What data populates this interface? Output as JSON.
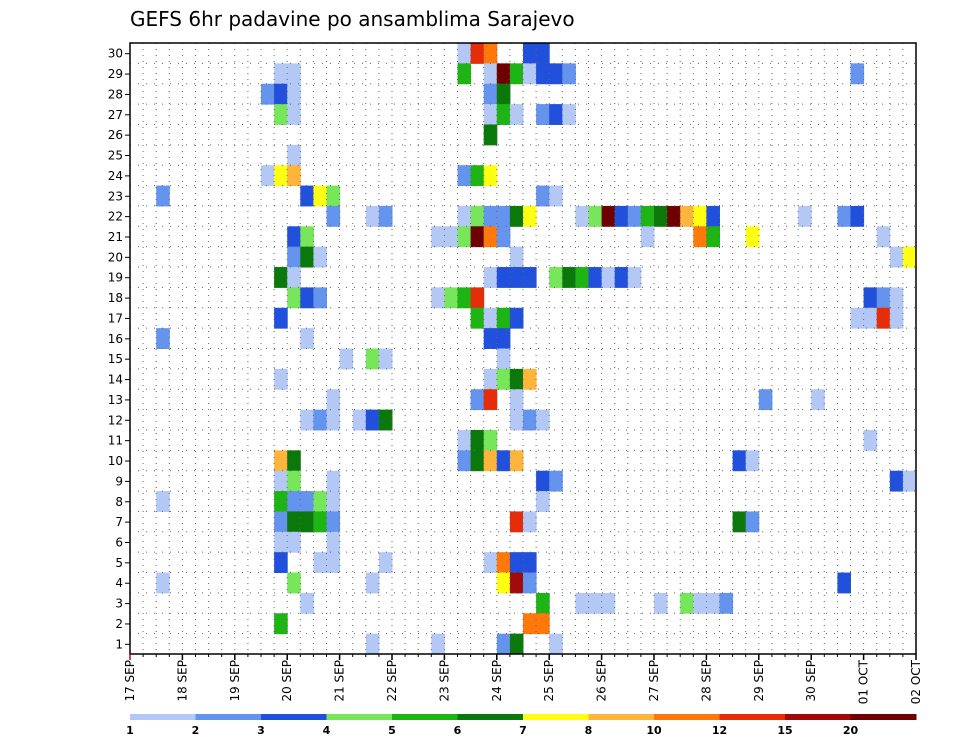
{
  "chart_data": {
    "type": "heatmap",
    "title": "GEFS 6hr padavine po ansamblima Sarajevo",
    "y_categories": [
      1,
      2,
      3,
      4,
      5,
      6,
      7,
      8,
      9,
      10,
      11,
      12,
      13,
      14,
      15,
      16,
      17,
      18,
      19,
      20,
      21,
      22,
      23,
      24,
      25,
      26,
      27,
      28,
      29,
      30
    ],
    "x_ticks": [
      "17 SEP",
      "18 SEP",
      "19 SEP",
      "20 SEP",
      "21 SEP",
      "22 SEP",
      "23 SEP",
      "24 SEP",
      "25 SEP",
      "26 SEP",
      "27 SEP",
      "28 SEP",
      "29 SEP",
      "30 SEP",
      "01 OCT",
      "02 OCT"
    ],
    "x_range_days": [
      0,
      15
    ],
    "grid": true,
    "legend_placement": "bottom",
    "legend_levels": [
      1,
      2,
      3,
      4,
      5,
      6,
      7,
      8,
      10,
      12,
      15,
      20
    ],
    "legend_colors": [
      "#b4c8f5",
      "#6494ee",
      "#2050dc",
      "#78e65a",
      "#1eb414",
      "#0a780a",
      "#ffff14",
      "#ffb43c",
      "#ff780a",
      "#e62d0a",
      "#a00a0a",
      "#6e0000"
    ],
    "cells": [
      {
        "m": 30,
        "t": "23 SEP 06",
        "c": 0
      },
      {
        "m": 30,
        "t": "23 SEP 12",
        "c": 9
      },
      {
        "m": 30,
        "t": "23 SEP 18",
        "c": 8
      },
      {
        "m": 30,
        "t": "24 SEP 12",
        "c": 2
      },
      {
        "m": 30,
        "t": "24 SEP 18",
        "c": 2
      },
      {
        "m": 30,
        "t": "02 OCT 00",
        "c": 1
      },
      {
        "m": 29,
        "t": "19 SEP 18",
        "c": 0
      },
      {
        "m": 29,
        "t": "20 SEP 00",
        "c": 0
      },
      {
        "m": 29,
        "t": "23 SEP 06",
        "c": 4
      },
      {
        "m": 29,
        "t": "23 SEP 18",
        "c": 0
      },
      {
        "m": 29,
        "t": "24 SEP 00",
        "c": 11
      },
      {
        "m": 29,
        "t": "24 SEP 06",
        "c": 4
      },
      {
        "m": 29,
        "t": "24 SEP 12",
        "c": 0
      },
      {
        "m": 29,
        "t": "24 SEP 18",
        "c": 2
      },
      {
        "m": 29,
        "t": "25 SEP 00",
        "c": 2
      },
      {
        "m": 29,
        "t": "25 SEP 06",
        "c": 1
      },
      {
        "m": 29,
        "t": "30 SEP 18",
        "c": 1
      },
      {
        "m": 29,
        "t": "02 OCT 00",
        "c": 0
      },
      {
        "m": 28,
        "t": "19 SEP 12",
        "c": 1
      },
      {
        "m": 28,
        "t": "19 SEP 18",
        "c": 2
      },
      {
        "m": 28,
        "t": "20 SEP 00",
        "c": 0
      },
      {
        "m": 28,
        "t": "23 SEP 18",
        "c": 1
      },
      {
        "m": 28,
        "t": "24 SEP 00",
        "c": 5
      },
      {
        "m": 27,
        "t": "19 SEP 18",
        "c": 3
      },
      {
        "m": 27,
        "t": "20 SEP 00",
        "c": 0
      },
      {
        "m": 27,
        "t": "23 SEP 18",
        "c": 0
      },
      {
        "m": 27,
        "t": "24 SEP 00",
        "c": 4
      },
      {
        "m": 27,
        "t": "24 SEP 06",
        "c": 0
      },
      {
        "m": 27,
        "t": "24 SEP 18",
        "c": 1
      },
      {
        "m": 27,
        "t": "25 SEP 00",
        "c": 2
      },
      {
        "m": 27,
        "t": "25 SEP 06",
        "c": 0
      },
      {
        "m": 26,
        "t": "23 SEP 18",
        "c": 5
      },
      {
        "m": 25,
        "t": "20 SEP 00",
        "c": 0
      },
      {
        "m": 24,
        "t": "19 SEP 12",
        "c": 0
      },
      {
        "m": 24,
        "t": "19 SEP 18",
        "c": 6
      },
      {
        "m": 24,
        "t": "20 SEP 00",
        "c": 7
      },
      {
        "m": 24,
        "t": "23 SEP 06",
        "c": 1
      },
      {
        "m": 24,
        "t": "23 SEP 12",
        "c": 4
      },
      {
        "m": 24,
        "t": "23 SEP 18",
        "c": 6
      },
      {
        "m": 23,
        "t": "17 SEP 12",
        "c": 1
      },
      {
        "m": 23,
        "t": "20 SEP 06",
        "c": 2
      },
      {
        "m": 23,
        "t": "20 SEP 12",
        "c": 6
      },
      {
        "m": 23,
        "t": "20 SEP 18",
        "c": 3
      },
      {
        "m": 23,
        "t": "24 SEP 18",
        "c": 1
      },
      {
        "m": 23,
        "t": "25 SEP 00",
        "c": 0
      },
      {
        "m": 22,
        "t": "20 SEP 18",
        "c": 1
      },
      {
        "m": 22,
        "t": "21 SEP 12",
        "c": 0
      },
      {
        "m": 22,
        "t": "21 SEP 18",
        "c": 1
      },
      {
        "m": 22,
        "t": "23 SEP 06",
        "c": 0
      },
      {
        "m": 22,
        "t": "23 SEP 12",
        "c": 3
      },
      {
        "m": 22,
        "t": "23 SEP 18",
        "c": 1
      },
      {
        "m": 22,
        "t": "24 SEP 00",
        "c": 1
      },
      {
        "m": 22,
        "t": "24 SEP 06",
        "c": 5
      },
      {
        "m": 22,
        "t": "24 SEP 12",
        "c": 6
      },
      {
        "m": 22,
        "t": "25 SEP 12",
        "c": 0
      },
      {
        "m": 22,
        "t": "25 SEP 18",
        "c": 3
      },
      {
        "m": 22,
        "t": "26 SEP 00",
        "c": 11
      },
      {
        "m": 22,
        "t": "26 SEP 06",
        "c": 2
      },
      {
        "m": 22,
        "t": "26 SEP 12",
        "c": 1
      },
      {
        "m": 22,
        "t": "26 SEP 18",
        "c": 4
      },
      {
        "m": 22,
        "t": "27 SEP 00",
        "c": 5
      },
      {
        "m": 22,
        "t": "27 SEP 06",
        "c": 11
      },
      {
        "m": 22,
        "t": "27 SEP 12",
        "c": 7
      },
      {
        "m": 22,
        "t": "27 SEP 18",
        "c": 6
      },
      {
        "m": 22,
        "t": "28 SEP 00",
        "c": 2
      },
      {
        "m": 22,
        "t": "29 SEP 18",
        "c": 0
      },
      {
        "m": 22,
        "t": "30 SEP 12",
        "c": 1
      },
      {
        "m": 22,
        "t": "30 SEP 18",
        "c": 2
      },
      {
        "m": 21,
        "t": "20 SEP 00",
        "c": 2
      },
      {
        "m": 21,
        "t": "20 SEP 06",
        "c": 3
      },
      {
        "m": 21,
        "t": "22 SEP 18",
        "c": 0
      },
      {
        "m": 21,
        "t": "23 SEP 00",
        "c": 0
      },
      {
        "m": 21,
        "t": "23 SEP 06",
        "c": 3
      },
      {
        "m": 21,
        "t": "23 SEP 12",
        "c": 11
      },
      {
        "m": 21,
        "t": "23 SEP 18",
        "c": 8
      },
      {
        "m": 21,
        "t": "24 SEP 00",
        "c": 1
      },
      {
        "m": 21,
        "t": "26 SEP 18",
        "c": 0
      },
      {
        "m": 21,
        "t": "27 SEP 18",
        "c": 8
      },
      {
        "m": 21,
        "t": "28 SEP 00",
        "c": 4
      },
      {
        "m": 21,
        "t": "28 SEP 18",
        "c": 6
      },
      {
        "m": 21,
        "t": "01 OCT 06",
        "c": 0
      },
      {
        "m": 20,
        "t": "20 SEP 00",
        "c": 1
      },
      {
        "m": 20,
        "t": "20 SEP 06",
        "c": 5
      },
      {
        "m": 20,
        "t": "20 SEP 12",
        "c": 0
      },
      {
        "m": 20,
        "t": "24 SEP 06",
        "c": 0
      },
      {
        "m": 20,
        "t": "01 OCT 12",
        "c": 0
      },
      {
        "m": 20,
        "t": "01 OCT 18",
        "c": 6
      },
      {
        "m": 20,
        "t": "02 OCT 00",
        "c": 1
      },
      {
        "m": 19,
        "t": "19 SEP 18",
        "c": 5
      },
      {
        "m": 19,
        "t": "20 SEP 00",
        "c": 0
      },
      {
        "m": 19,
        "t": "23 SEP 18",
        "c": 0
      },
      {
        "m": 19,
        "t": "24 SEP 00",
        "c": 2
      },
      {
        "m": 19,
        "t": "24 SEP 06",
        "c": 2
      },
      {
        "m": 19,
        "t": "24 SEP 12",
        "c": 2
      },
      {
        "m": 19,
        "t": "25 SEP 00",
        "c": 3
      },
      {
        "m": 19,
        "t": "25 SEP 06",
        "c": 5
      },
      {
        "m": 19,
        "t": "25 SEP 12",
        "c": 4
      },
      {
        "m": 19,
        "t": "25 SEP 18",
        "c": 2
      },
      {
        "m": 19,
        "t": "26 SEP 00",
        "c": 0
      },
      {
        "m": 19,
        "t": "26 SEP 06",
        "c": 2
      },
      {
        "m": 19,
        "t": "26 SEP 12",
        "c": 0
      },
      {
        "m": 18,
        "t": "20 SEP 00",
        "c": 3
      },
      {
        "m": 18,
        "t": "20 SEP 06",
        "c": 2
      },
      {
        "m": 18,
        "t": "20 SEP 12",
        "c": 1
      },
      {
        "m": 18,
        "t": "22 SEP 18",
        "c": 0
      },
      {
        "m": 18,
        "t": "23 SEP 00",
        "c": 3
      },
      {
        "m": 18,
        "t": "23 SEP 06",
        "c": 4
      },
      {
        "m": 18,
        "t": "23 SEP 12",
        "c": 9
      },
      {
        "m": 18,
        "t": "01 OCT 00",
        "c": 2
      },
      {
        "m": 18,
        "t": "01 OCT 06",
        "c": 1
      },
      {
        "m": 18,
        "t": "01 OCT 12",
        "c": 0
      },
      {
        "m": 17,
        "t": "19 SEP 18",
        "c": 2
      },
      {
        "m": 17,
        "t": "23 SEP 12",
        "c": 4
      },
      {
        "m": 17,
        "t": "23 SEP 18",
        "c": 0
      },
      {
        "m": 17,
        "t": "24 SEP 00",
        "c": 4
      },
      {
        "m": 17,
        "t": "24 SEP 06",
        "c": 2
      },
      {
        "m": 17,
        "t": "30 SEP 18",
        "c": 0
      },
      {
        "m": 17,
        "t": "01 OCT 00",
        "c": 0
      },
      {
        "m": 17,
        "t": "01 OCT 06",
        "c": 9
      },
      {
        "m": 17,
        "t": "01 OCT 12",
        "c": 0
      },
      {
        "m": 16,
        "t": "17 SEP 12",
        "c": 1
      },
      {
        "m": 16,
        "t": "20 SEP 06",
        "c": 0
      },
      {
        "m": 16,
        "t": "23 SEP 18",
        "c": 2
      },
      {
        "m": 16,
        "t": "24 SEP 00",
        "c": 2
      },
      {
        "m": 15,
        "t": "21 SEP 00",
        "c": 0
      },
      {
        "m": 15,
        "t": "21 SEP 12",
        "c": 3
      },
      {
        "m": 15,
        "t": "21 SEP 18",
        "c": 0
      },
      {
        "m": 15,
        "t": "24 SEP 00",
        "c": 0
      },
      {
        "m": 14,
        "t": "19 SEP 18",
        "c": 0
      },
      {
        "m": 14,
        "t": "23 SEP 18",
        "c": 0
      },
      {
        "m": 14,
        "t": "24 SEP 00",
        "c": 3
      },
      {
        "m": 14,
        "t": "24 SEP 06",
        "c": 5
      },
      {
        "m": 14,
        "t": "24 SEP 12",
        "c": 7
      },
      {
        "m": 13,
        "t": "20 SEP 18",
        "c": 0
      },
      {
        "m": 13,
        "t": "23 SEP 12",
        "c": 1
      },
      {
        "m": 13,
        "t": "23 SEP 18",
        "c": 9
      },
      {
        "m": 13,
        "t": "24 SEP 06",
        "c": 0
      },
      {
        "m": 13,
        "t": "29 SEP 00",
        "c": 1
      },
      {
        "m": 13,
        "t": "30 SEP 00",
        "c": 0
      },
      {
        "m": 12,
        "t": "20 SEP 06",
        "c": 0
      },
      {
        "m": 12,
        "t": "20 SEP 12",
        "c": 1
      },
      {
        "m": 12,
        "t": "20 SEP 18",
        "c": 0
      },
      {
        "m": 12,
        "t": "21 SEP 06",
        "c": 0
      },
      {
        "m": 12,
        "t": "21 SEP 12",
        "c": 2
      },
      {
        "m": 12,
        "t": "21 SEP 18",
        "c": 5
      },
      {
        "m": 12,
        "t": "24 SEP 06",
        "c": 0
      },
      {
        "m": 12,
        "t": "24 SEP 12",
        "c": 1
      },
      {
        "m": 12,
        "t": "24 SEP 18",
        "c": 0
      },
      {
        "m": 11,
        "t": "23 SEP 06",
        "c": 0
      },
      {
        "m": 11,
        "t": "23 SEP 12",
        "c": 5
      },
      {
        "m": 11,
        "t": "23 SEP 18",
        "c": 3
      },
      {
        "m": 11,
        "t": "01 OCT 00",
        "c": 0
      },
      {
        "m": 11,
        "t": "02 OCT 00",
        "c": 0
      },
      {
        "m": 10,
        "t": "19 SEP 18",
        "c": 7
      },
      {
        "m": 10,
        "t": "20 SEP 00",
        "c": 5
      },
      {
        "m": 10,
        "t": "23 SEP 06",
        "c": 1
      },
      {
        "m": 10,
        "t": "23 SEP 12",
        "c": 5
      },
      {
        "m": 10,
        "t": "23 SEP 18",
        "c": 7
      },
      {
        "m": 10,
        "t": "24 SEP 00",
        "c": 2
      },
      {
        "m": 10,
        "t": "24 SEP 06",
        "c": 7
      },
      {
        "m": 10,
        "t": "28 SEP 12",
        "c": 2
      },
      {
        "m": 10,
        "t": "28 SEP 18",
        "c": 0
      },
      {
        "m": 9,
        "t": "19 SEP 18",
        "c": 0
      },
      {
        "m": 9,
        "t": "20 SEP 00",
        "c": 3
      },
      {
        "m": 9,
        "t": "20 SEP 18",
        "c": 0
      },
      {
        "m": 9,
        "t": "24 SEP 18",
        "c": 2
      },
      {
        "m": 9,
        "t": "25 SEP 00",
        "c": 1
      },
      {
        "m": 9,
        "t": "01 OCT 12",
        "c": 2
      },
      {
        "m": 9,
        "t": "01 OCT 18",
        "c": 0
      },
      {
        "m": 8,
        "t": "17 SEP 12",
        "c": 0
      },
      {
        "m": 8,
        "t": "19 SEP 18",
        "c": 4
      },
      {
        "m": 8,
        "t": "20 SEP 00",
        "c": 1
      },
      {
        "m": 8,
        "t": "20 SEP 06",
        "c": 1
      },
      {
        "m": 8,
        "t": "20 SEP 12",
        "c": 3
      },
      {
        "m": 8,
        "t": "20 SEP 18",
        "c": 0
      },
      {
        "m": 8,
        "t": "24 SEP 18",
        "c": 0
      },
      {
        "m": 7,
        "t": "19 SEP 18",
        "c": 1
      },
      {
        "m": 7,
        "t": "20 SEP 00",
        "c": 5
      },
      {
        "m": 7,
        "t": "20 SEP 06",
        "c": 5
      },
      {
        "m": 7,
        "t": "20 SEP 12",
        "c": 4
      },
      {
        "m": 7,
        "t": "20 SEP 18",
        "c": 1
      },
      {
        "m": 7,
        "t": "24 SEP 06",
        "c": 9
      },
      {
        "m": 7,
        "t": "24 SEP 12",
        "c": 0
      },
      {
        "m": 7,
        "t": "28 SEP 12",
        "c": 5
      },
      {
        "m": 7,
        "t": "28 SEP 18",
        "c": 1
      },
      {
        "m": 6,
        "t": "19 SEP 18",
        "c": 0
      },
      {
        "m": 6,
        "t": "20 SEP 00",
        "c": 0
      },
      {
        "m": 6,
        "t": "20 SEP 18",
        "c": 0
      },
      {
        "m": 5,
        "t": "19 SEP 18",
        "c": 2
      },
      {
        "m": 5,
        "t": "20 SEP 12",
        "c": 0
      },
      {
        "m": 5,
        "t": "20 SEP 18",
        "c": 0
      },
      {
        "m": 5,
        "t": "21 SEP 18",
        "c": 0
      },
      {
        "m": 5,
        "t": "23 SEP 18",
        "c": 0
      },
      {
        "m": 5,
        "t": "24 SEP 00",
        "c": 8
      },
      {
        "m": 5,
        "t": "24 SEP 06",
        "c": 2
      },
      {
        "m": 5,
        "t": "24 SEP 12",
        "c": 2
      },
      {
        "m": 4,
        "t": "20 SEP 00",
        "c": 3
      },
      {
        "m": 4,
        "t": "21 SEP 12",
        "c": 0
      },
      {
        "m": 4,
        "t": "24 SEP 00",
        "c": 6
      },
      {
        "m": 4,
        "t": "24 SEP 06",
        "c": 10
      },
      {
        "m": 4,
        "t": "24 SEP 12",
        "c": 1
      },
      {
        "m": 4,
        "t": "30 SEP 12",
        "c": 2
      },
      {
        "m": 4,
        "t": "17 SEP 12",
        "c": 0
      },
      {
        "m": 3,
        "t": "20 SEP 06",
        "c": 0
      },
      {
        "m": 3,
        "t": "24 SEP 18",
        "c": 4
      },
      {
        "m": 3,
        "t": "25 SEP 12",
        "c": 0
      },
      {
        "m": 3,
        "t": "25 SEP 18",
        "c": 0
      },
      {
        "m": 3,
        "t": "26 SEP 00",
        "c": 0
      },
      {
        "m": 3,
        "t": "27 SEP 00",
        "c": 0
      },
      {
        "m": 3,
        "t": "27 SEP 12",
        "c": 3
      },
      {
        "m": 3,
        "t": "27 SEP 18",
        "c": 0
      },
      {
        "m": 3,
        "t": "28 SEP 00",
        "c": 0
      },
      {
        "m": 3,
        "t": "28 SEP 06",
        "c": 1
      },
      {
        "m": 2,
        "t": "19 SEP 18",
        "c": 4
      },
      {
        "m": 2,
        "t": "24 SEP 12",
        "c": 8
      },
      {
        "m": 2,
        "t": "24 SEP 18",
        "c": 8
      },
      {
        "m": 1,
        "t": "21 SEP 12",
        "c": 0
      },
      {
        "m": 1,
        "t": "22 SEP 18",
        "c": 0
      },
      {
        "m": 1,
        "t": "24 SEP 00",
        "c": 1
      },
      {
        "m": 1,
        "t": "24 SEP 06",
        "c": 5
      },
      {
        "m": 1,
        "t": "25 SEP 00",
        "c": 0
      }
    ]
  }
}
